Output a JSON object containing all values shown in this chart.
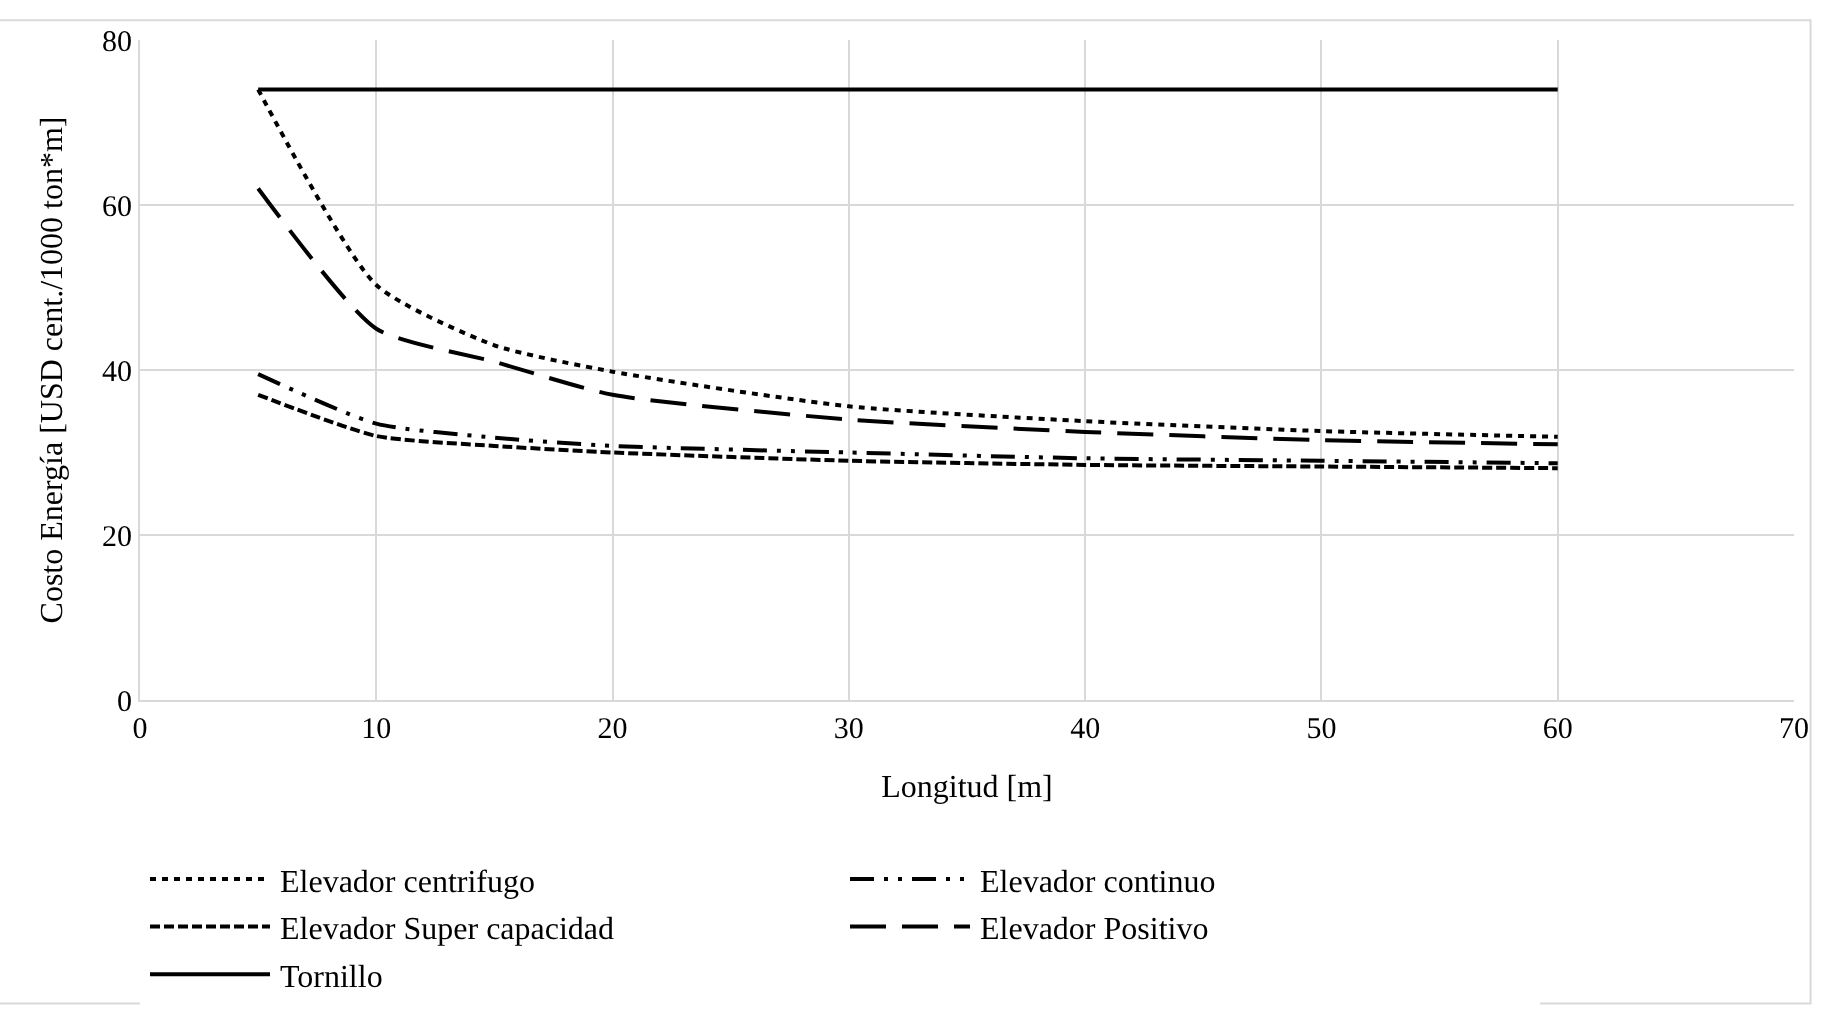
{
  "chart_data": {
    "type": "line",
    "xlabel": "Longitud [m]",
    "ylabel": "Costo Energía [USD cent./1000 ton*m]",
    "x": [
      5,
      10,
      15,
      20,
      30,
      40,
      50,
      60
    ],
    "xlim": [
      0,
      70
    ],
    "xticks": [
      0,
      10,
      20,
      30,
      40,
      50,
      60,
      70
    ],
    "ylim": [
      0,
      80
    ],
    "yticks": [
      0,
      20,
      40,
      60,
      80
    ],
    "grid": true,
    "legend": "bottom",
    "marker": "none",
    "series": [
      {
        "name": "Elevador centrifugo",
        "color": "#000000",
        "line_style": "dotted",
        "values": [
          74,
          50.3,
          43,
          39.8,
          35.6,
          33.8,
          32.6,
          31.9
        ]
      },
      {
        "name": "Elevador continuo",
        "color": "#000000",
        "line_style": "dashdot",
        "values": [
          39.5,
          33.5,
          31.8,
          30.8,
          30,
          29.3,
          29,
          28.7
        ]
      },
      {
        "name": "Elevador Super capacidad",
        "color": "#000000",
        "line_style": "dashed",
        "values": [
          37,
          32,
          30.8,
          30,
          29,
          28.5,
          28.3,
          28.1
        ]
      },
      {
        "name": "Elevador Positivo",
        "color": "#000000",
        "line_style": "longdashed",
        "values": [
          62,
          45,
          41,
          37,
          34,
          32.5,
          31.5,
          31
        ]
      },
      {
        "name": "Tornillo",
        "color": "#000000",
        "line_style": "solid",
        "x": [
          5,
          60
        ],
        "values": [
          74,
          74
        ]
      }
    ]
  }
}
